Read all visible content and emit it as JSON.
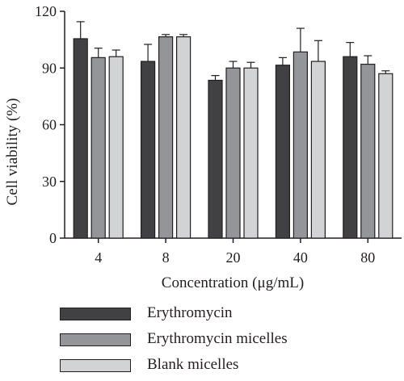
{
  "chart_data": {
    "type": "bar",
    "categories": [
      "4",
      "8",
      "20",
      "40",
      "80"
    ],
    "series": [
      {
        "name": "Erythromycin",
        "color": "#414042",
        "values": [
          105.5,
          93.5,
          83.5,
          91.5,
          96
        ],
        "errors": [
          9,
          9,
          2.5,
          4,
          7.5
        ]
      },
      {
        "name": "Erythromycin micelles",
        "color": "#939598",
        "values": [
          95.5,
          106.5,
          90,
          98.5,
          92
        ],
        "errors": [
          5,
          1.2,
          3.5,
          12.5,
          4.5
        ]
      },
      {
        "name": "Blank micelles",
        "color": "#d1d3d4",
        "values": [
          96,
          106.5,
          90,
          93.5,
          87
        ],
        "errors": [
          3.5,
          1.2,
          3,
          11,
          1.5
        ]
      }
    ],
    "xlabel": "Concentration (μg/mL)",
    "ylabel": "Cell viability (%)",
    "ylim": [
      0,
      120
    ],
    "yticks": [
      0,
      30,
      60,
      90,
      120
    ],
    "grid": false,
    "legend_position": "bottom"
  }
}
